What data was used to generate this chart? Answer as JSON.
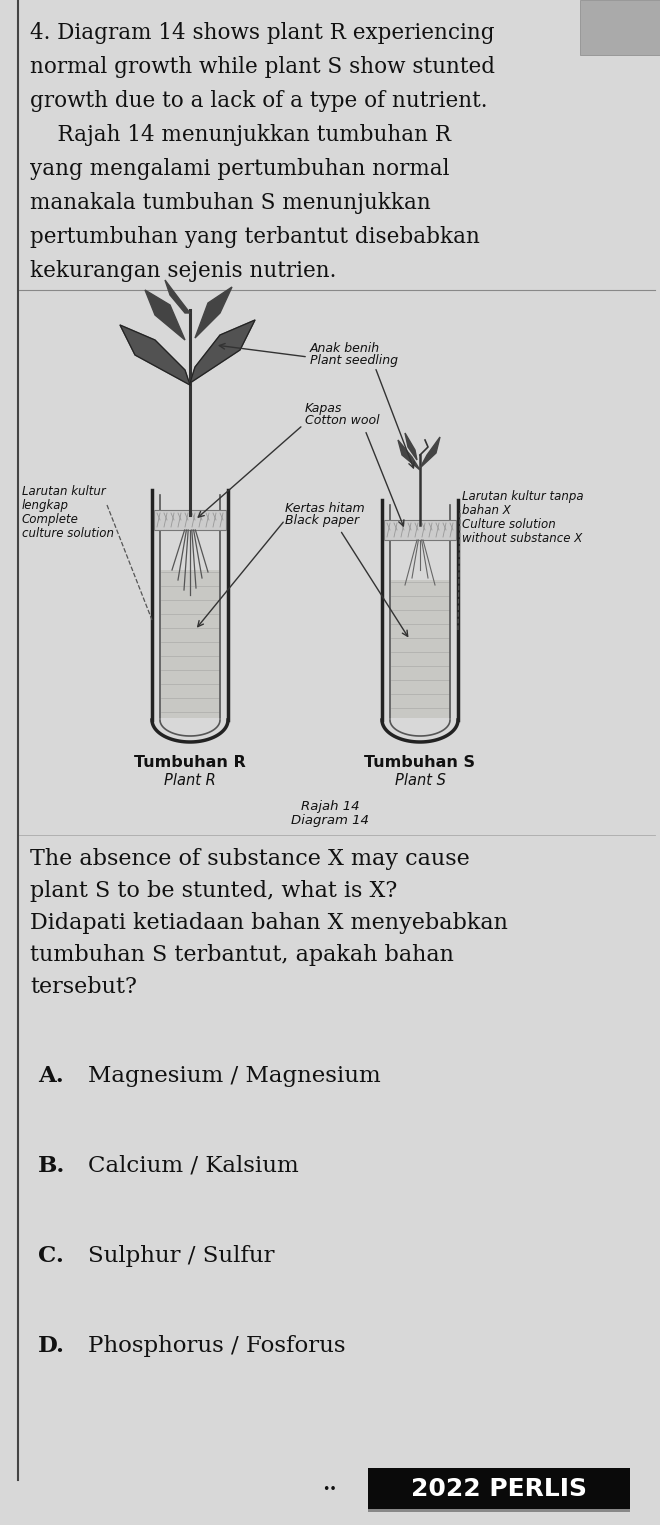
{
  "bg_color": "#d8d8d8",
  "text_color": "#111111",
  "question_lines": [
    "4. Diagram 14 shows plant R experiencing",
    "normal growth while plant S show stunted",
    "growth due to a lack of a type of nutrient.",
    "    Rajah 14 menunjukkan tumbuhan R",
    "yang mengalami pertumbuhan normal",
    "manakala tumbuhan S menunjukkan",
    "pertumbuhan yang terbantut disebabkan",
    "kekurangan sejenis nutrien."
  ],
  "q2_lines": [
    "The absence of substance X may cause",
    "plant S to be stunted, what is X?",
    "Didapati ketiadaan bahan X menyebabkan",
    "tumbuhan S terbantut, apakah bahan",
    "tersebut?"
  ],
  "options": [
    {
      "label": "A.",
      "text": "Magnesium / Magnesium"
    },
    {
      "label": "B.",
      "text": "Calcium / Kalsium"
    },
    {
      "label": "C.",
      "text": "Sulphur / Sulfur"
    },
    {
      "label": "D.",
      "text": "Phosphorus / Fosforus"
    }
  ],
  "left_label_line1": "Larutan kultur",
  "left_label_line2": "lengkap",
  "left_label_line3": "Complete",
  "left_label_line4": "culture solution",
  "right_label_line1": "Larutan kultur tanpa",
  "right_label_line2": "bahan X",
  "right_label_line3": "Culture solution",
  "right_label_line4": "without substance X",
  "ann1_line1": "Anak benih",
  "ann1_line2": "Plant seedling",
  "ann2_line1": "Kapas",
  "ann2_line2": "Cotton wool",
  "ann3_line1": "Kertas hitam",
  "ann3_line2": "Black paper",
  "plant_r_bold": "Tumbuhan R",
  "plant_r_italic": "Plant R",
  "plant_s_bold": "Tumbuhan S",
  "plant_s_italic": "Plant S",
  "diagram_label1": "Rajah 14",
  "diagram_label2": "Diagram 14",
  "footer_text": "2022 PERLIS",
  "footer_bg": "#0a0a0a",
  "footer_fg": "#ffffff",
  "left_border_color": "#555555"
}
